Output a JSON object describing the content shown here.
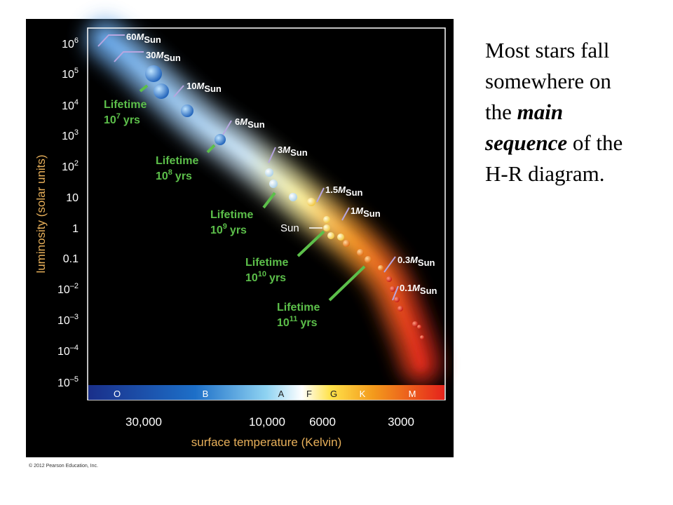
{
  "slide": {
    "text": [
      [
        {
          "text": "Most stars fall",
          "style": "normal"
        }
      ],
      [
        {
          "text": "somewhere on",
          "style": "normal"
        }
      ],
      [
        {
          "text": "the ",
          "style": "normal"
        },
        {
          "text": "main",
          "style": "bold-italic"
        }
      ],
      [
        {
          "text": "sequence",
          "style": "bold-italic"
        },
        {
          "text": " of the",
          "style": "normal"
        }
      ],
      [
        {
          "text": "H-R diagram.",
          "style": "normal"
        }
      ]
    ]
  },
  "figure": {
    "y_axis": {
      "label": "luminosity (solar units)",
      "ticks": [
        {
          "base": "10",
          "exp": "6"
        },
        {
          "base": "10",
          "exp": "5"
        },
        {
          "base": "10",
          "exp": "4"
        },
        {
          "base": "10",
          "exp": "3"
        },
        {
          "base": "10",
          "exp": "2"
        },
        {
          "base": "10"
        },
        {
          "base": "1"
        },
        {
          "base": "0.1"
        },
        {
          "base": "10",
          "exp": "–2"
        },
        {
          "base": "10",
          "exp": "–3"
        },
        {
          "base": "10",
          "exp": "–4"
        },
        {
          "base": "10",
          "exp": "–5"
        }
      ]
    },
    "x_axis": {
      "label": "surface temperature (Kelvin)",
      "ticks": [
        "30,000",
        "10,000",
        "6000",
        "3000"
      ]
    },
    "spectral_classes": [
      "O",
      "B",
      "A",
      "F",
      "G",
      "K",
      "M"
    ],
    "masses": [
      {
        "mass": "60",
        "symbol": "M",
        "sub": "Sun"
      },
      {
        "mass": "30",
        "symbol": "M",
        "sub": "Sun"
      },
      {
        "mass": "10",
        "symbol": "M",
        "sub": "Sun"
      },
      {
        "mass": "6",
        "symbol": "M",
        "sub": "Sun"
      },
      {
        "mass": "3",
        "symbol": "M",
        "sub": "Sun"
      },
      {
        "mass": "1.5",
        "symbol": "M",
        "sub": "Sun"
      },
      {
        "mass": "1",
        "symbol": "M",
        "sub": "Sun"
      },
      {
        "mass": "0.3",
        "symbol": "M",
        "sub": "Sun"
      },
      {
        "mass": "0.1",
        "symbol": "M",
        "sub": "Sun"
      }
    ],
    "lifetimes": [
      {
        "word": "Lifetime",
        "base": "10",
        "exp": "7",
        "unit": "yrs"
      },
      {
        "word": "Lifetime",
        "base": "10",
        "exp": "8",
        "unit": "yrs"
      },
      {
        "word": "Lifetime",
        "base": "10",
        "exp": "9",
        "unit": "yrs"
      },
      {
        "word": "Lifetime",
        "base": "10",
        "exp": "10",
        "unit": "yrs"
      },
      {
        "word": "Lifetime",
        "base": "10",
        "exp": "11",
        "unit": "yrs"
      }
    ],
    "sun_label": "Sun",
    "credit": "© 2012 Pearson Education, Inc."
  }
}
